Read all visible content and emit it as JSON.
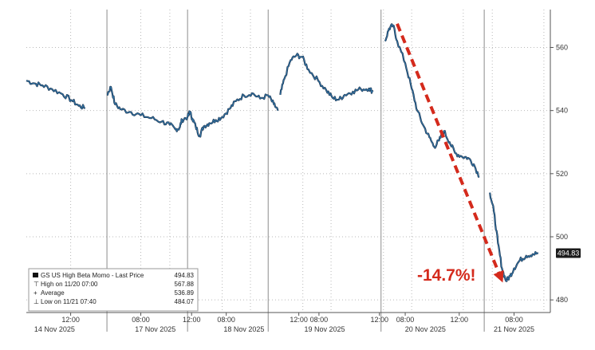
{
  "chart_data": {
    "type": "line",
    "colors": {
      "line": "#2f6f9f",
      "line_dark": "#1b2c44",
      "annotation": "#d42a1c",
      "last_price_bg": "#1a1a1a"
    },
    "y_axis": {
      "position": "right",
      "ylim": [
        476,
        572
      ],
      "ticks": [
        480,
        500,
        520,
        540,
        560
      ]
    },
    "x_axis": {
      "time_ticks": [
        "12:00",
        "08:00",
        "12:00",
        "08:00",
        "12:00",
        "08:00",
        "12:00",
        "08:00",
        "12:00",
        "08:00"
      ],
      "date_labels": [
        "14 Nov 2025",
        "17 Nov 2025",
        "18 Nov 2025",
        "19 Nov 2025",
        "20 Nov 2025",
        "21 Nov 2025"
      ]
    },
    "grid": true,
    "legend_position": "bottom-left",
    "legend": {
      "series": "GS US High Beta Momo - Last Price",
      "last_price": "494.83",
      "high_label": "High on 11/20 07:00",
      "high_value": "567.88",
      "avg_label": "Average",
      "avg_value": "536.89",
      "low_label": "Low on 11/21 07:40",
      "low_value": "484.07"
    },
    "last_price_tag": "494.83",
    "annotation": "-14.7%!",
    "arrow": {
      "from": [
        19.34,
        567.5
      ],
      "to": [
        20.67,
        485.5
      ]
    },
    "series": [
      {
        "session_points": [
          [
            [
              0.0,
              549.5
            ],
            [
              0.1,
              548.6
            ],
            [
              0.2,
              548.0
            ],
            [
              0.32,
              546.8
            ],
            [
              0.45,
              545.2
            ],
            [
              0.56,
              543.3
            ],
            [
              0.65,
              541.5
            ],
            [
              0.73,
              540.8
            ]
          ],
          [
            [
              1.0,
              545.0
            ],
            [
              1.05,
              547.5
            ],
            [
              1.1,
              542.0
            ],
            [
              1.18,
              540.3
            ],
            [
              1.3,
              539.5
            ],
            [
              1.42,
              538.5
            ],
            [
              1.55,
              537.6
            ],
            [
              1.68,
              536.5
            ],
            [
              1.78,
              535.5
            ],
            [
              1.85,
              534.0
            ],
            [
              1.9,
              534.5
            ],
            [
              1.93,
              537.0
            ],
            [
              2.0,
              538.0
            ],
            [
              2.04,
              539.5
            ]
          ],
          [
            [
              2.02,
              540.0
            ],
            [
              2.06,
              537.5
            ],
            [
              2.1,
              535.0
            ],
            [
              2.15,
              532.0
            ],
            [
              2.2,
              535.0
            ],
            [
              2.27,
              536.0
            ],
            [
              2.35,
              537.0
            ],
            [
              2.43,
              538.0
            ],
            [
              2.52,
              540.5
            ],
            [
              2.6,
              543.0
            ],
            [
              2.7,
              544.8
            ],
            [
              2.8,
              545.5
            ],
            [
              2.9,
              543.8
            ],
            [
              3.0,
              544.8
            ],
            [
              3.07,
              542.0
            ],
            [
              3.12,
              540.0
            ]
          ],
          [
            [
              3.15,
              545.0
            ],
            [
              3.2,
              550.0
            ],
            [
              3.28,
              556.0
            ],
            [
              3.35,
              557.5
            ],
            [
              3.42,
              557.0
            ],
            [
              3.5,
              553.0
            ],
            [
              3.62,
              549.5
            ],
            [
              3.72,
              546.5
            ],
            [
              3.8,
              544.0
            ],
            [
              3.88,
              543.5
            ],
            [
              3.95,
              545.0
            ],
            [
              4.05,
              546.0
            ],
            [
              4.15,
              546.8
            ],
            [
              4.25,
              547.0
            ],
            [
              4.3,
              546.0
            ]
          ],
          [
            [
              4.45,
              562.0
            ],
            [
              4.5,
              566.0
            ],
            [
              4.55,
              567.0
            ],
            [
              4.6,
              562.0
            ],
            [
              4.7,
              555.0
            ],
            [
              4.78,
              547.0
            ],
            [
              4.85,
              540.0
            ],
            [
              4.92,
              535.5
            ],
            [
              5.0,
              531.5
            ],
            [
              5.06,
              528.5
            ],
            [
              5.12,
              530.5
            ],
            [
              5.18,
              533.5
            ],
            [
              5.25,
              530.0
            ],
            [
              5.32,
              526.5
            ],
            [
              5.4,
              525.5
            ],
            [
              5.48,
              525.0
            ],
            [
              5.55,
              523.0
            ],
            [
              5.62,
              519.0
            ]
          ],
          [
            [
              5.75,
              514.0
            ],
            [
              5.8,
              508.0
            ],
            [
              5.85,
              498.0
            ],
            [
              5.9,
              490.0
            ],
            [
              5.95,
              486.0
            ],
            [
              6.0,
              487.5
            ],
            [
              6.05,
              490.0
            ],
            [
              6.12,
              492.5
            ],
            [
              6.2,
              494.0
            ],
            [
              6.28,
              494.5
            ],
            [
              6.35,
              494.83
            ]
          ]
        ]
      }
    ]
  }
}
